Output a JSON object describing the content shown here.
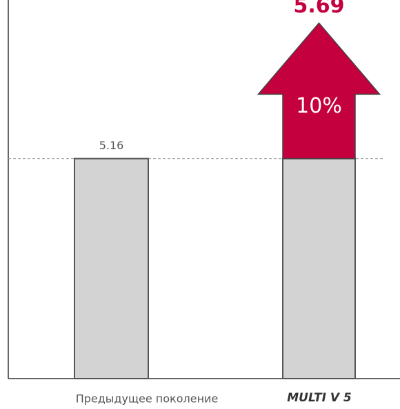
{
  "chart_data": {
    "type": "bar",
    "categories": [
      "Предыдущее поколение",
      "MULTI V 5"
    ],
    "values": [
      5.16,
      5.69
    ],
    "annotation": "10%",
    "color": "#d3d3d3",
    "highlight_color": "#c5003e",
    "ylim": [
      4.3,
      5.78
    ]
  }
}
